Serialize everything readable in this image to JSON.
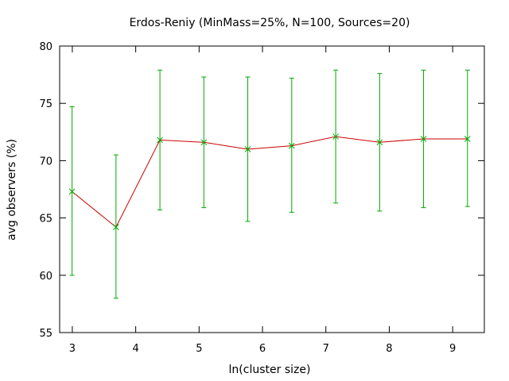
{
  "chart_data": {
    "type": "line",
    "title": "Erdos-Reniy (MinMass=25%, N=100, Sources=20)",
    "xlabel": "ln(cluster size)",
    "ylabel": "avg observers (%)",
    "xlim": [
      2.8,
      9.5
    ],
    "ylim": [
      55,
      80
    ],
    "xticks": [
      3,
      4,
      5,
      6,
      7,
      8,
      9
    ],
    "yticks": [
      55,
      60,
      65,
      70,
      75,
      80
    ],
    "grid": false,
    "legend": "none",
    "series": [
      {
        "line_color": "#cc0000",
        "marker_color": "#00aa00",
        "errorbar_color": "#00aa00",
        "x": [
          2.996,
          3.689,
          4.382,
          5.075,
          5.768,
          6.461,
          7.155,
          7.848,
          8.541,
          9.234
        ],
        "y": [
          67.3,
          64.2,
          71.8,
          71.6,
          71.0,
          71.3,
          72.1,
          71.6,
          71.9,
          71.9
        ],
        "err_low": [
          60.0,
          58.0,
          65.7,
          65.9,
          64.7,
          65.5,
          66.3,
          65.6,
          65.9,
          66.0
        ],
        "err_high": [
          74.7,
          70.5,
          77.9,
          77.3,
          77.3,
          77.2,
          77.9,
          77.6,
          77.9,
          77.9
        ]
      }
    ]
  }
}
